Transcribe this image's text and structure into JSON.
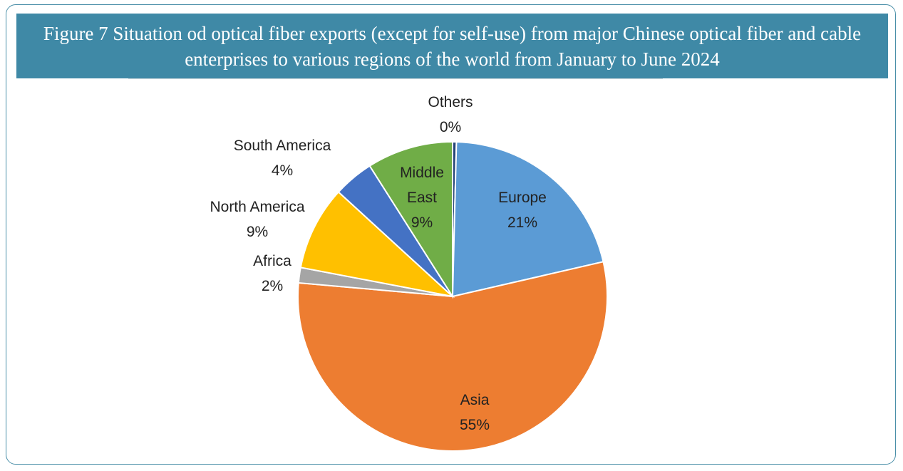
{
  "chart_data": {
    "type": "pie",
    "title": "Figure 7 Situation od optical fiber exports (except for self-use) from major Chinese optical fiber and cable enterprises to various regions of the world from January to June 2024",
    "slices": [
      {
        "name": "Others",
        "value": 0.4,
        "label": "0%",
        "color": "#264478"
      },
      {
        "name": "Europe",
        "value": 21,
        "label": "21%",
        "color": "#5b9bd5"
      },
      {
        "name": "Asia",
        "value": 55,
        "label": "55%",
        "color": "#ed7d31"
      },
      {
        "name": "Africa",
        "value": 1.6,
        "label": "2%",
        "color": "#a5a5a5"
      },
      {
        "name": "North America",
        "value": 8.8,
        "label": "9%",
        "color": "#ffc000"
      },
      {
        "name": "South America",
        "value": 4.2,
        "label": "4%",
        "color": "#4472c4"
      },
      {
        "name": "Middle East",
        "value": 9,
        "label": "9%",
        "color": "#70ad47"
      }
    ]
  }
}
